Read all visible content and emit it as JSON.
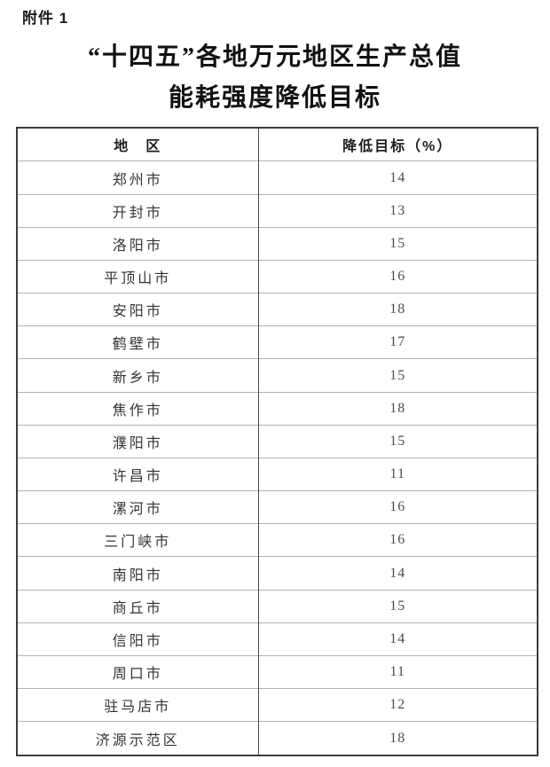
{
  "page": {
    "attachment_label": "附件 1",
    "title_line1": "“十四五”各地万元地区生产总值",
    "title_line2": "能耗强度降低目标"
  },
  "table": {
    "headers": {
      "region": "地　区",
      "target": "降低目标（%）"
    },
    "rows": [
      {
        "region": "郑州市",
        "target": "14"
      },
      {
        "region": "开封市",
        "target": "13"
      },
      {
        "region": "洛阳市",
        "target": "15"
      },
      {
        "region": "平顶山市",
        "target": "16"
      },
      {
        "region": "安阳市",
        "target": "18"
      },
      {
        "region": "鹤壁市",
        "target": "17"
      },
      {
        "region": "新乡市",
        "target": "15"
      },
      {
        "region": "焦作市",
        "target": "18"
      },
      {
        "region": "濮阳市",
        "target": "15"
      },
      {
        "region": "许昌市",
        "target": "11"
      },
      {
        "region": "漯河市",
        "target": "16"
      },
      {
        "region": "三门峡市",
        "target": "16"
      },
      {
        "region": "南阳市",
        "target": "14"
      },
      {
        "region": "商丘市",
        "target": "15"
      },
      {
        "region": "信阳市",
        "target": "14"
      },
      {
        "region": "周口市",
        "target": "11"
      },
      {
        "region": "驻马店市",
        "target": "12"
      },
      {
        "region": "济源示范区",
        "target": "18"
      }
    ]
  },
  "colors": {
    "page_background": "#ffffff",
    "title_text": "#111111",
    "body_text": "#333333",
    "outer_border": "#3d3d3d",
    "column_divider": "#4a4a4a",
    "row_divider": "#b3b3b3"
  }
}
